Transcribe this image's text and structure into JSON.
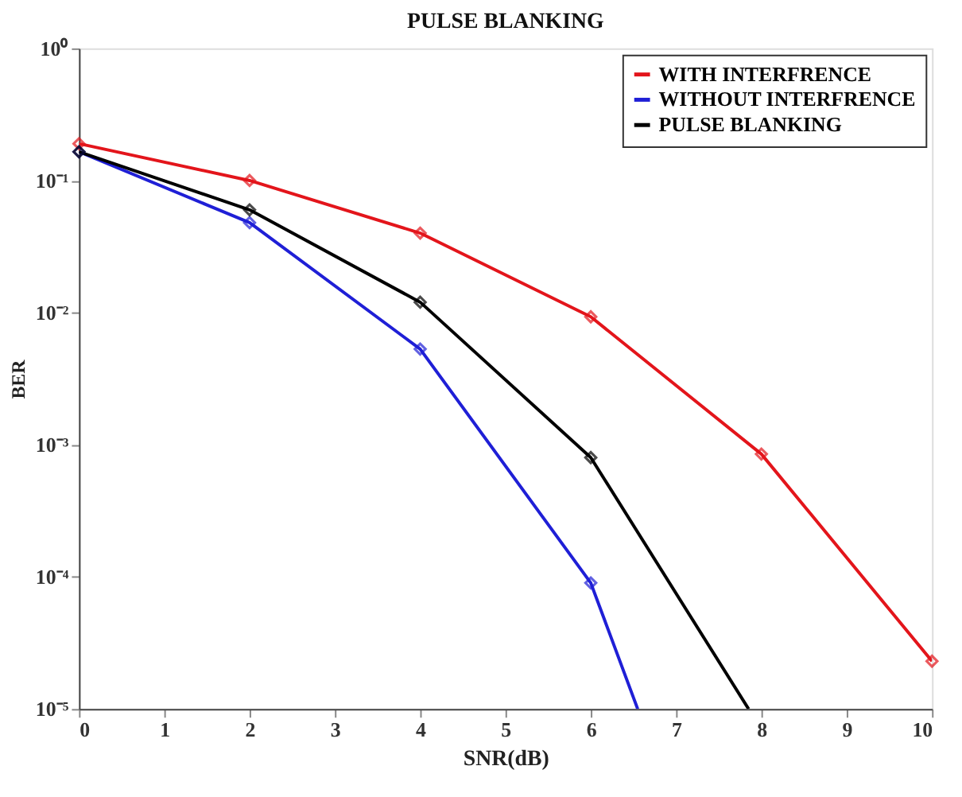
{
  "chart_data": {
    "type": "line",
    "title": "PULSE BLANKING",
    "xlabel": "SNR(dB)",
    "ylabel": "BER",
    "log": "y",
    "grid": false,
    "legend": "top right",
    "marker": "diamond",
    "line_style": "solid",
    "xlim": [
      0,
      10
    ],
    "xticks": [
      0,
      1,
      2,
      3,
      4,
      5,
      6,
      7,
      8,
      9,
      10
    ],
    "ylim": [
      1e-05,
      1
    ],
    "yticks": [
      {
        "value": 1e-05,
        "label": "10⁻⁵"
      },
      {
        "value": 0.0001,
        "label": "10⁻⁴"
      },
      {
        "value": 0.001,
        "label": "10⁻³"
      },
      {
        "value": 0.01,
        "label": "10⁻²"
      },
      {
        "value": 0.1,
        "label": "10⁻¹"
      },
      {
        "value": 1,
        "label": "10⁰"
      }
    ],
    "series": [
      {
        "name": "WITH INTERFRENCE",
        "color": "#e3151b",
        "x": [
          0,
          2,
          4,
          6,
          8,
          10
        ],
        "values": [
          0.19,
          0.1,
          0.04,
          0.0093,
          0.00085,
          2.3e-05
        ]
      },
      {
        "name": "WITHOUT INTERFRENCE",
        "color": "#1f1fd6",
        "x": [
          0,
          2,
          4,
          6,
          6.55
        ],
        "values": [
          0.165,
          0.048,
          0.0053,
          9e-05,
          1e-05
        ]
      },
      {
        "name": "PULSE BLANKING",
        "color": "#000000",
        "x": [
          0,
          2,
          4,
          6,
          7.85
        ],
        "values": [
          0.165,
          0.06,
          0.012,
          0.0008,
          1e-05
        ]
      }
    ]
  }
}
